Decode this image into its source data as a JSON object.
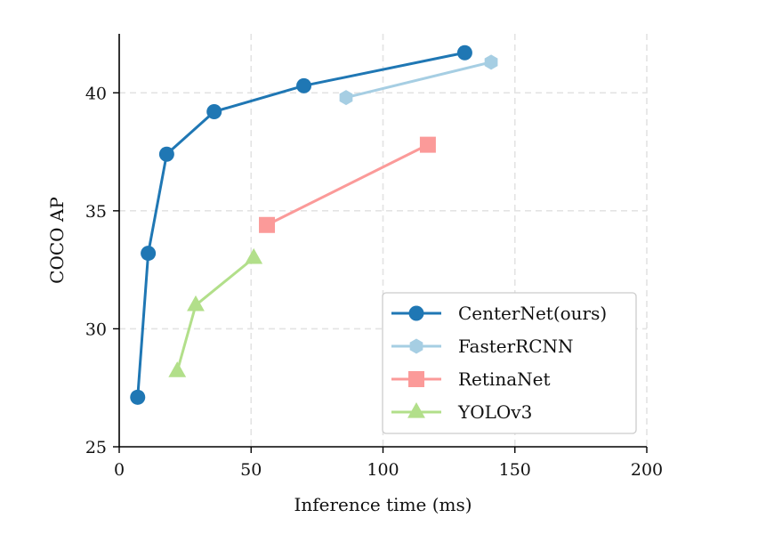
{
  "chart_data": {
    "type": "line",
    "xlabel": "Inference time (ms)",
    "ylabel": "COCO AP",
    "xlim": [
      0,
      200
    ],
    "ylim": [
      25,
      42.5
    ],
    "xticks": [
      0,
      50,
      100,
      150,
      200
    ],
    "yticks": [
      25,
      30,
      35,
      40
    ],
    "grid": true,
    "legend_position": "bottom-right",
    "series": [
      {
        "name": "CenterNet(ours)",
        "color": "#1f77b4",
        "marker": "circle",
        "x": [
          7,
          11,
          18,
          36,
          70,
          131
        ],
        "y": [
          27.1,
          33.2,
          37.4,
          39.2,
          40.3,
          41.7
        ]
      },
      {
        "name": "FasterRCNN",
        "color": "#a6cee3",
        "marker": "hexagon",
        "x": [
          86,
          141
        ],
        "y": [
          39.8,
          41.3
        ]
      },
      {
        "name": "RetinaNet",
        "color": "#fb9a99",
        "marker": "square",
        "x": [
          56,
          117
        ],
        "y": [
          34.4,
          37.8
        ]
      },
      {
        "name": "YOLOv3",
        "color": "#b2df8a",
        "marker": "triangle",
        "x": [
          22,
          29,
          51
        ],
        "y": [
          28.2,
          31.0,
          33.0
        ]
      }
    ]
  }
}
